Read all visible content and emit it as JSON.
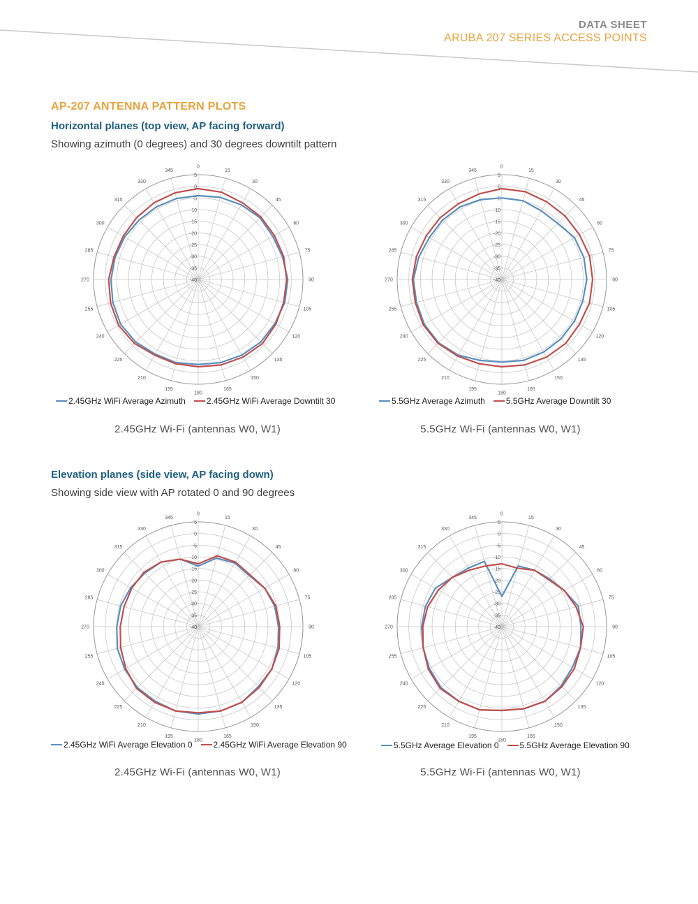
{
  "header": {
    "doc_type": "DATA SHEET",
    "product": "ARUBA 207 SERIES ACCESS POINTS"
  },
  "section": {
    "title": "AP-207 ANTENNA PATTERN PLOTS",
    "horizontal": {
      "title": "Horizontal planes (top view, AP facing forward)",
      "description": "Showing azimuth (0 degrees) and 30 degrees downtilt pattern"
    },
    "elevation": {
      "title": "Elevation planes (side view, AP facing down)",
      "description": "Showing side view with AP rotated 0 and 90 degrees"
    }
  },
  "colors": {
    "blue": "#5b8fbd",
    "red": "#c0504d"
  },
  "chart_data": [
    {
      "type": "polar-line",
      "caption": "2.45GHz Wi-Fi (antennas W0, W1)",
      "angle_labels": [
        "0",
        "15",
        "30",
        "45",
        "60",
        "75",
        "90",
        "105",
        "120",
        "135",
        "150",
        "165",
        "180",
        "195",
        "210",
        "225",
        "240",
        "255",
        "270",
        "285",
        "300",
        "315",
        "330",
        "345"
      ],
      "radial_ticks": [
        5,
        0,
        -5,
        -10,
        -15,
        -20,
        -25,
        -30,
        -35,
        -40
      ],
      "rlim": [
        -40,
        5
      ],
      "series": [
        {
          "name": "2.45GHz WiFi Average Azimuth",
          "color": "blue",
          "angles": [
            0,
            15,
            30,
            45,
            60,
            75,
            90,
            105,
            120,
            135,
            150,
            165,
            180,
            195,
            210,
            225,
            240,
            255,
            270,
            285,
            300,
            315,
            330,
            345
          ],
          "values": [
            -4,
            -3.5,
            -3,
            -2.5,
            -3,
            -2.5,
            -1.5,
            -1.5,
            -2,
            -2,
            -2.5,
            -3,
            -3.5,
            -3,
            -3,
            -2,
            -1.5,
            -2,
            -2.5,
            -3,
            -3.5,
            -4,
            -4,
            -4
          ]
        },
        {
          "name": "2.45GHz WiFi Average Downtilt 30",
          "color": "red",
          "angles": [
            0,
            15,
            30,
            45,
            60,
            75,
            90,
            105,
            120,
            135,
            150,
            165,
            180,
            195,
            210,
            225,
            240,
            255,
            270,
            285,
            300,
            315,
            330,
            345
          ],
          "values": [
            -1,
            -1.2,
            -2,
            -2,
            -2.2,
            -2,
            -2,
            -2,
            -1.5,
            -1,
            -1.5,
            -2,
            -2.5,
            -2.5,
            -2.5,
            -1.2,
            -0.5,
            -1,
            -1.5,
            -2.5,
            -2.8,
            -2.5,
            -2,
            -1.5
          ]
        }
      ]
    },
    {
      "type": "polar-line",
      "caption": "5.5GHz Wi-Fi (antennas W0, W1)",
      "angle_labels": [
        "0",
        "15",
        "30",
        "45",
        "60",
        "75",
        "90",
        "105",
        "120",
        "135",
        "150",
        "165",
        "180",
        "195",
        "210",
        "225",
        "240",
        "255",
        "270",
        "285",
        "300",
        "315",
        "330",
        "345"
      ],
      "radial_ticks": [
        5,
        0,
        -5,
        -10,
        -15,
        -20,
        -25,
        -30,
        -35,
        -40
      ],
      "rlim": [
        -40,
        5
      ],
      "series": [
        {
          "name": "5.5GHz Average Azimuth",
          "color": "blue",
          "angles": [
            0,
            15,
            30,
            45,
            60,
            75,
            90,
            105,
            120,
            135,
            150,
            165,
            180,
            195,
            210,
            225,
            240,
            255,
            270,
            285,
            300,
            315,
            330,
            345
          ],
          "values": [
            -5,
            -5,
            -6,
            -6,
            -4,
            -3.5,
            -3.5,
            -4,
            -4,
            -4,
            -4,
            -4,
            -4.5,
            -4,
            -2.5,
            -1.5,
            -1.5,
            -2,
            -2,
            -3,
            -4,
            -4,
            -4,
            -4.5
          ]
        },
        {
          "name": "5.5GHz Average Downtilt 30",
          "color": "red",
          "angles": [
            0,
            15,
            30,
            45,
            60,
            75,
            90,
            105,
            120,
            135,
            150,
            165,
            180,
            195,
            210,
            225,
            240,
            255,
            270,
            285,
            300,
            315,
            330,
            345
          ],
          "values": [
            -1,
            -1,
            -1.5,
            -1.5,
            -1.5,
            -1,
            -1,
            -1,
            -1.5,
            -1.2,
            -1.5,
            -2,
            -2.5,
            -2.5,
            -2,
            -1.2,
            -1,
            -1.5,
            -1.5,
            -2,
            -2.5,
            -2.5,
            -2.5,
            -2
          ]
        }
      ]
    },
    {
      "type": "polar-line",
      "caption": "2.45GHz Wi-Fi (antennas W0, W1)",
      "angle_labels": [
        "0",
        "15",
        "30",
        "45",
        "60",
        "75",
        "90",
        "105",
        "120",
        "135",
        "150",
        "165",
        "180",
        "195",
        "210",
        "225",
        "240",
        "255",
        "270",
        "285",
        "300",
        "315",
        "330",
        "345"
      ],
      "radial_ticks": [
        5,
        0,
        -5,
        -10,
        -15,
        -20,
        -25,
        -30,
        -35,
        -40
      ],
      "rlim": [
        -40,
        5
      ],
      "series": [
        {
          "name": "2.45GHz WiFi Average Elevation 0",
          "color": "blue",
          "angles": [
            0,
            15,
            30,
            45,
            60,
            75,
            90,
            105,
            120,
            135,
            150,
            165,
            180,
            195,
            210,
            225,
            240,
            255,
            270,
            285,
            300,
            315,
            330,
            345
          ],
          "values": [
            -14,
            -9.5,
            -8.5,
            -9,
            -7,
            -6,
            -5.5,
            -4.5,
            -3.5,
            -3.5,
            -2.5,
            -2.5,
            -2.5,
            -2.5,
            -3,
            -3,
            -3.5,
            -4,
            -5,
            -5.5,
            -6.5,
            -7.5,
            -8,
            -10
          ]
        },
        {
          "name": "2.45GHz WiFi Average Elevation 90",
          "color": "red",
          "angles": [
            0,
            15,
            30,
            45,
            60,
            75,
            90,
            105,
            120,
            135,
            150,
            165,
            180,
            195,
            210,
            225,
            240,
            255,
            270,
            285,
            300,
            315,
            330,
            345
          ],
          "values": [
            -13,
            -8.5,
            -8,
            -8.5,
            -7,
            -5.5,
            -5,
            -4,
            -3.5,
            -3,
            -2.5,
            -2.5,
            -3,
            -2.5,
            -2.5,
            -2.5,
            -4,
            -5.5,
            -6.5,
            -7,
            -7,
            -7,
            -8,
            -10
          ]
        }
      ]
    },
    {
      "type": "polar-line",
      "caption": "5.5GHz Wi-Fi (antennas W0, W1)",
      "angle_labels": [
        "0",
        "15",
        "30",
        "45",
        "60",
        "75",
        "90",
        "105",
        "120",
        "135",
        "150",
        "165",
        "180",
        "195",
        "210",
        "225",
        "240",
        "255",
        "270",
        "285",
        "300",
        "315",
        "330",
        "345"
      ],
      "radial_ticks": [
        5,
        0,
        -5,
        -10,
        -15,
        -20,
        -25,
        -30,
        -35,
        -40
      ],
      "rlim": [
        -40,
        5
      ],
      "series": [
        {
          "name": "5.5GHz Average Elevation 0",
          "color": "blue",
          "angles": [
            0,
            15,
            30,
            45,
            60,
            75,
            90,
            105,
            120,
            135,
            150,
            165,
            180,
            195,
            210,
            225,
            240,
            255,
            270,
            285,
            300,
            315,
            330,
            345
          ],
          "values": [
            -27,
            -13,
            -12,
            -11,
            -9,
            -6,
            -6,
            -5,
            -5,
            -4,
            -3,
            -3.5,
            -4,
            -3,
            -3,
            -3,
            -4,
            -5,
            -5.5,
            -6,
            -7,
            -10,
            -11,
            -11
          ]
        },
        {
          "name": "5.5GHz Average Elevation 90",
          "color": "red",
          "angles": [
            0,
            15,
            30,
            45,
            60,
            75,
            90,
            105,
            120,
            135,
            150,
            165,
            180,
            195,
            210,
            225,
            240,
            255,
            270,
            285,
            300,
            315,
            330,
            345
          ],
          "values": [
            -13,
            -14,
            -12,
            -11.5,
            -9,
            -7,
            -5,
            -5,
            -4,
            -3.5,
            -3,
            -3.5,
            -4,
            -3,
            -3,
            -2.5,
            -3.5,
            -5,
            -6,
            -7,
            -8.5,
            -10,
            -12,
            -13
          ]
        }
      ]
    }
  ]
}
